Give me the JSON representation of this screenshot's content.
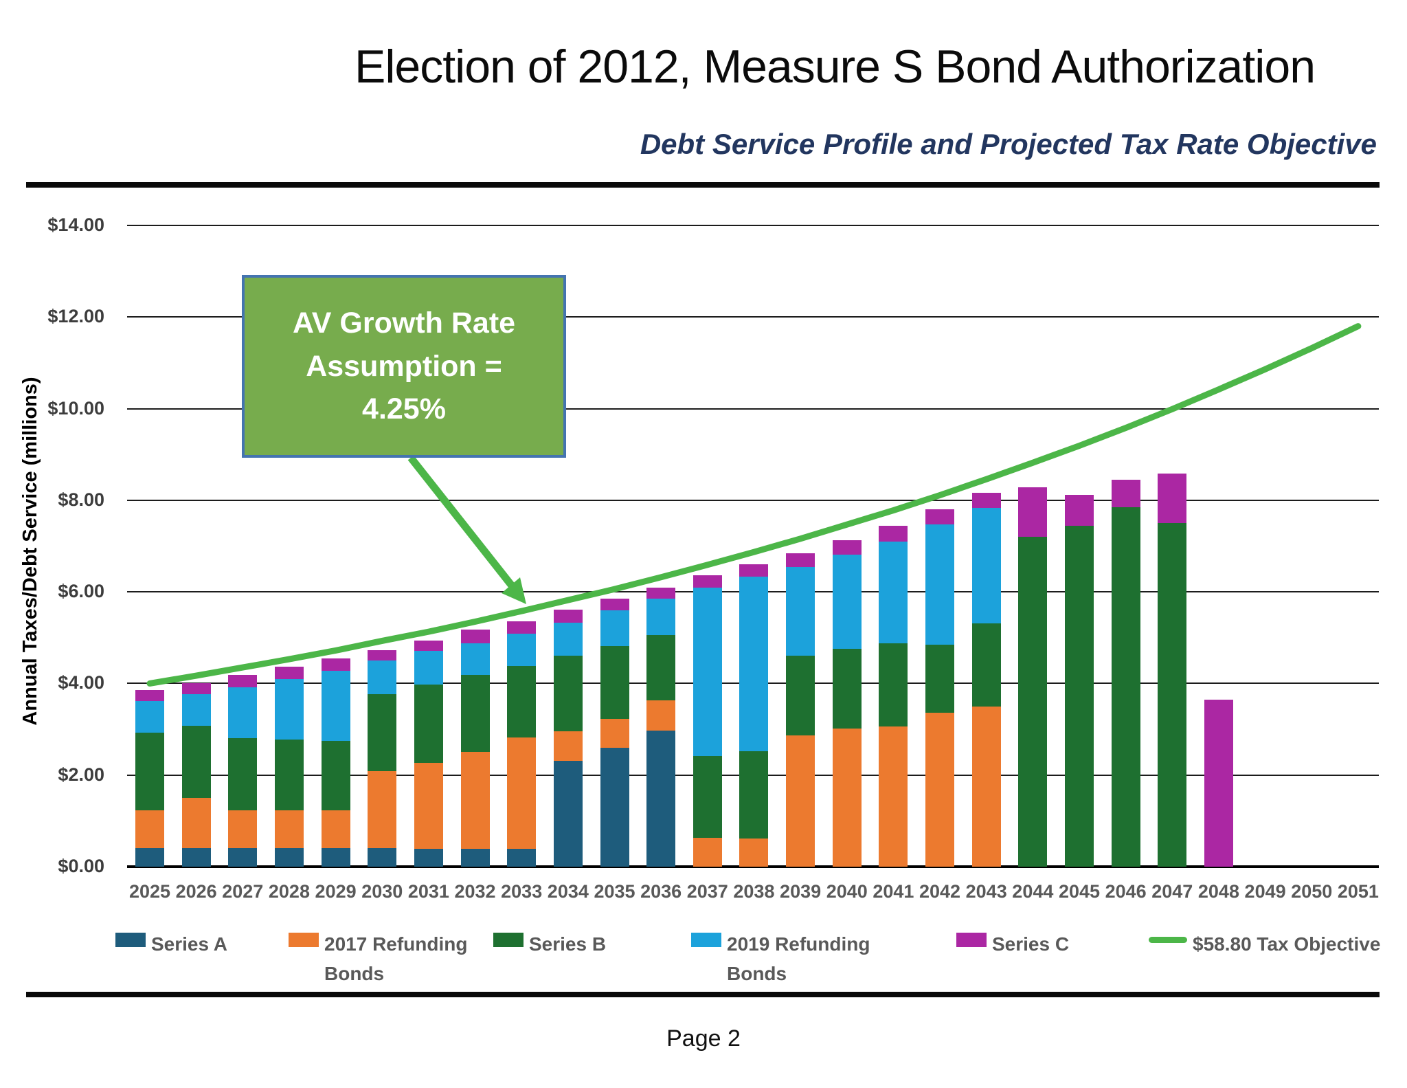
{
  "header": {
    "title": "Election of 2012, Measure S Bond Authorization",
    "subtitle": "Debt Service Profile and Projected Tax Rate Objective"
  },
  "footer": {
    "page_label": "Page 2"
  },
  "annotation": {
    "text": "AV Growth Rate\nAssumption =\n4.25%"
  },
  "y_axis": {
    "title": "Annual Taxes/Debt Service (millions)",
    "ticks": [
      {
        "label": "$14.00",
        "value": 14
      },
      {
        "label": "$12.00",
        "value": 12
      },
      {
        "label": "$10.00",
        "value": 10
      },
      {
        "label": "$8.00",
        "value": 8
      },
      {
        "label": "$6.00",
        "value": 6
      },
      {
        "label": "$4.00",
        "value": 4
      },
      {
        "label": "$2.00",
        "value": 2
      },
      {
        "label": "$0.00",
        "value": 0
      }
    ]
  },
  "chart_data": {
    "type": "bar",
    "subtype": "stacked-bars-with-line-overlay",
    "title": "Election of 2012, Measure S Bond Authorization",
    "subtitle": "Debt Service Profile and Projected Tax Rate Objective",
    "xlabel": "",
    "ylabel": "Annual Taxes/Debt Service (millions)",
    "ylim": [
      0,
      14
    ],
    "grid": true,
    "legend_position": "bottom",
    "categories": [
      2025,
      2026,
      2027,
      2028,
      2029,
      2030,
      2031,
      2032,
      2033,
      2034,
      2035,
      2036,
      2037,
      2038,
      2039,
      2040,
      2041,
      2042,
      2043,
      2044,
      2045,
      2046,
      2047,
      2048,
      2049,
      2050,
      2051
    ],
    "series": [
      {
        "name": "Series A",
        "color": "#1e5c7c",
        "values": [
          0.41,
          0.41,
          0.41,
          0.41,
          0.41,
          0.41,
          0.39,
          0.39,
          0.39,
          2.31,
          2.6,
          2.97,
          0,
          0,
          0,
          0,
          0,
          0,
          0,
          0,
          0,
          0,
          0,
          0,
          0,
          0,
          0
        ]
      },
      {
        "name": "2017 Refunding Bonds",
        "color": "#ec7a2f",
        "values": [
          0.82,
          1.09,
          0.82,
          0.82,
          0.82,
          1.68,
          1.88,
          2.12,
          2.43,
          0.65,
          0.62,
          0.66,
          0.63,
          0.61,
          2.86,
          3.02,
          3.06,
          3.36,
          3.5,
          0,
          0,
          0,
          0,
          0,
          0,
          0,
          0
        ]
      },
      {
        "name": "Series B",
        "color": "#1e7030",
        "values": [
          1.69,
          1.58,
          1.57,
          1.54,
          1.51,
          1.67,
          1.7,
          1.67,
          1.56,
          1.65,
          1.59,
          1.42,
          1.79,
          1.91,
          1.75,
          1.74,
          1.82,
          1.49,
          1.81,
          7.2,
          7.45,
          7.85,
          7.5,
          0,
          0,
          0,
          0
        ]
      },
      {
        "name": "2019 Refunding Bonds",
        "color": "#1ca2db",
        "values": [
          0.69,
          0.68,
          1.11,
          1.33,
          1.53,
          0.74,
          0.74,
          0.7,
          0.7,
          0.72,
          0.78,
          0.8,
          3.67,
          3.81,
          1.94,
          2.06,
          2.22,
          2.63,
          2.52,
          0,
          0,
          0,
          0,
          0,
          0,
          0,
          0
        ]
      },
      {
        "name": "Series C",
        "color": "#ab27a3",
        "values": [
          0.25,
          0.25,
          0.28,
          0.26,
          0.27,
          0.23,
          0.23,
          0.29,
          0.27,
          0.28,
          0.26,
          0.24,
          0.27,
          0.27,
          0.3,
          0.31,
          0.35,
          0.33,
          0.33,
          1.09,
          0.67,
          0.6,
          1.08,
          3.65,
          0,
          0,
          0
        ]
      }
    ],
    "line_series": {
      "name": "$58.80 Tax Objective",
      "color": "#4cb648",
      "values": [
        4.0,
        4.17,
        4.35,
        4.53,
        4.72,
        4.93,
        5.13,
        5.35,
        5.58,
        5.82,
        6.06,
        6.32,
        6.59,
        6.87,
        7.16,
        7.47,
        7.78,
        8.11,
        8.46,
        8.82,
        9.19,
        9.58,
        9.99,
        10.42,
        10.86,
        11.32,
        11.8
      ]
    }
  },
  "legend": {
    "items": [
      {
        "label": "Series A",
        "color": "#1e5c7c",
        "type": "rect"
      },
      {
        "label": "2017 Refunding\nBonds",
        "color": "#ec7a2f",
        "type": "rect"
      },
      {
        "label": "Series B",
        "color": "#1e7030",
        "type": "rect"
      },
      {
        "label": "2019 Refunding\nBonds",
        "color": "#1ca2db",
        "type": "rect"
      },
      {
        "label": "Series C",
        "color": "#ab27a3",
        "type": "rect"
      },
      {
        "label": "$58.80 Tax Objective",
        "color": "#4cb648",
        "type": "line"
      }
    ]
  }
}
